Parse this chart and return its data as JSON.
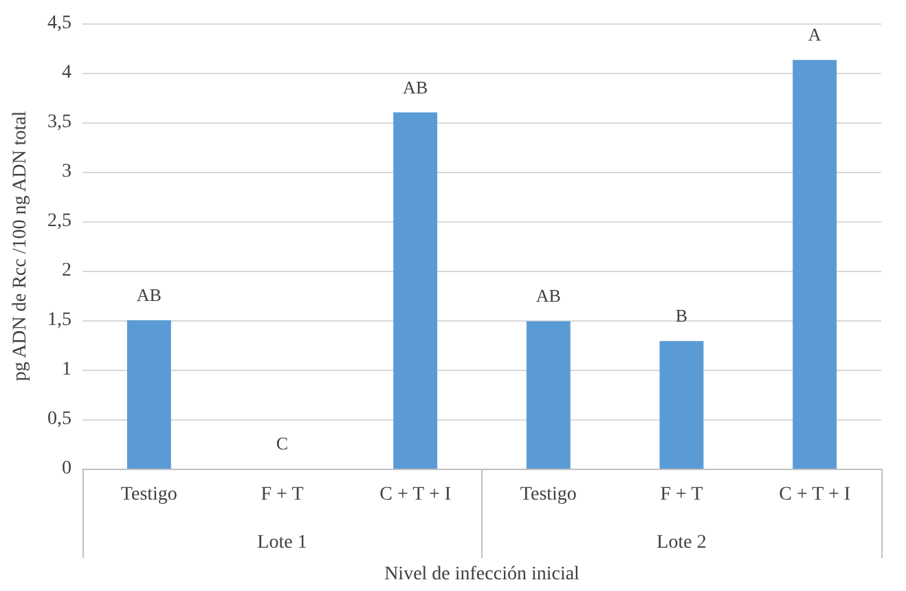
{
  "chart_data": {
    "type": "bar",
    "ylabel": "pg ADN de Rcc /100 ng ADN total",
    "xlabel": "Nivel de infección inicial",
    "categories": [
      "Testigo",
      "F + T",
      "C + T + I",
      "Testigo",
      "F + T",
      "C + T + I"
    ],
    "annotations": [
      "Lote 1",
      "Lote 2"
    ],
    "values": [
      1.5,
      0,
      3.6,
      1.49,
      1.29,
      4.13
    ],
    "value_labels": [
      "AB",
      "C",
      "AB",
      "AB",
      "B",
      "A"
    ],
    "color": "#5b9bd5",
    "ylim": [
      0,
      4.5
    ],
    "yticks": [
      0,
      {
        "value": 0.5,
        "label": "0,5"
      },
      1,
      {
        "value": 1.5,
        "label": "1,5"
      },
      2,
      {
        "value": 2.5,
        "label": "2,5"
      },
      3,
      {
        "value": 3.5,
        "label": "3,5"
      },
      4,
      {
        "value": 4.5,
        "label": "4,5"
      }
    ],
    "grid": "y"
  }
}
